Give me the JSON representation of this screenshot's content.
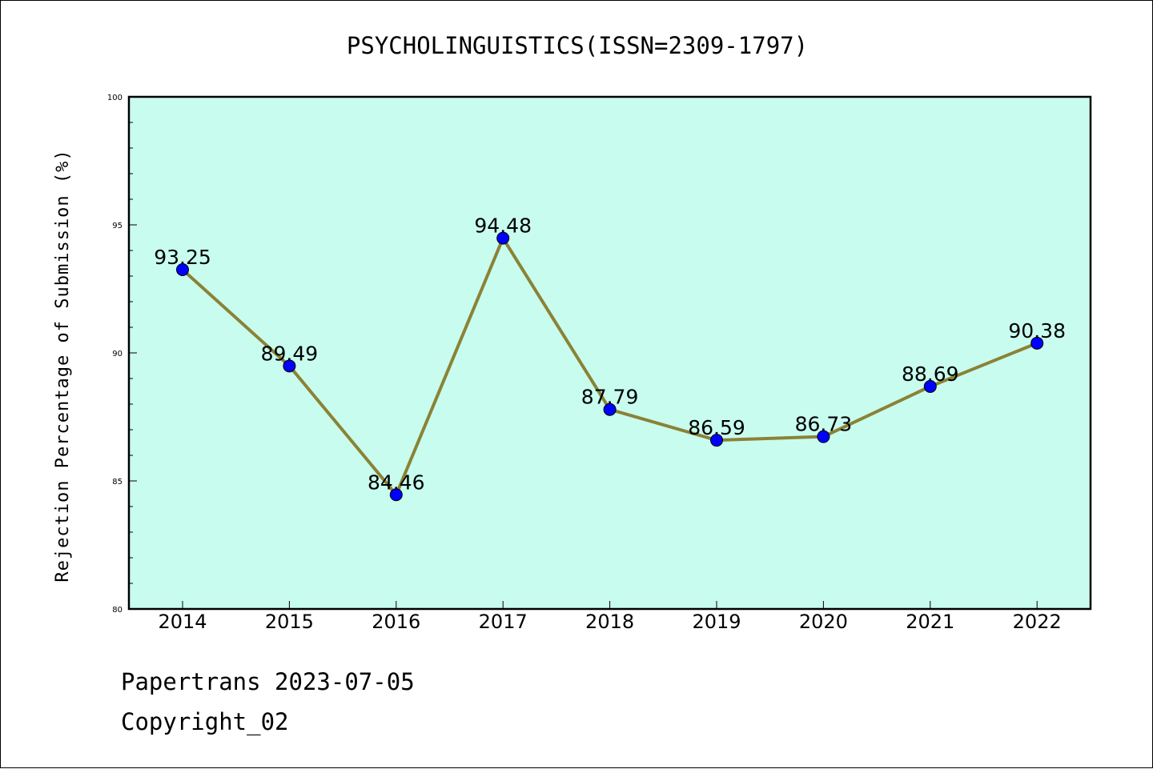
{
  "chart_data": {
    "type": "line",
    "title": "PSYCHOLINGUISTICS(ISSN=2309-1797)",
    "xlabel": "",
    "ylabel": "Rejection Percentage of Submission (%)",
    "categories": [
      "2014",
      "2015",
      "2016",
      "2017",
      "2018",
      "2019",
      "2020",
      "2021",
      "2022"
    ],
    "series": [
      {
        "values": [
          93.25,
          89.49,
          84.46,
          94.48,
          87.79,
          86.59,
          86.73,
          88.69,
          90.38
        ],
        "labels": [
          "93.25",
          "89.49",
          "84.46",
          "94.48",
          "87.79",
          "86.59",
          "86.73",
          "88.69",
          "90.38"
        ]
      }
    ],
    "ylim": [
      80,
      100
    ],
    "yticks": [
      "80",
      "85",
      "90",
      "95",
      "100"
    ],
    "grid": false,
    "colors": {
      "plot_background": "#c8fcee",
      "line": "#8b8236",
      "marker": "#0000ff"
    }
  },
  "footer": {
    "line1": "Papertrans 2023-07-05",
    "line2": "Copyright_02"
  }
}
